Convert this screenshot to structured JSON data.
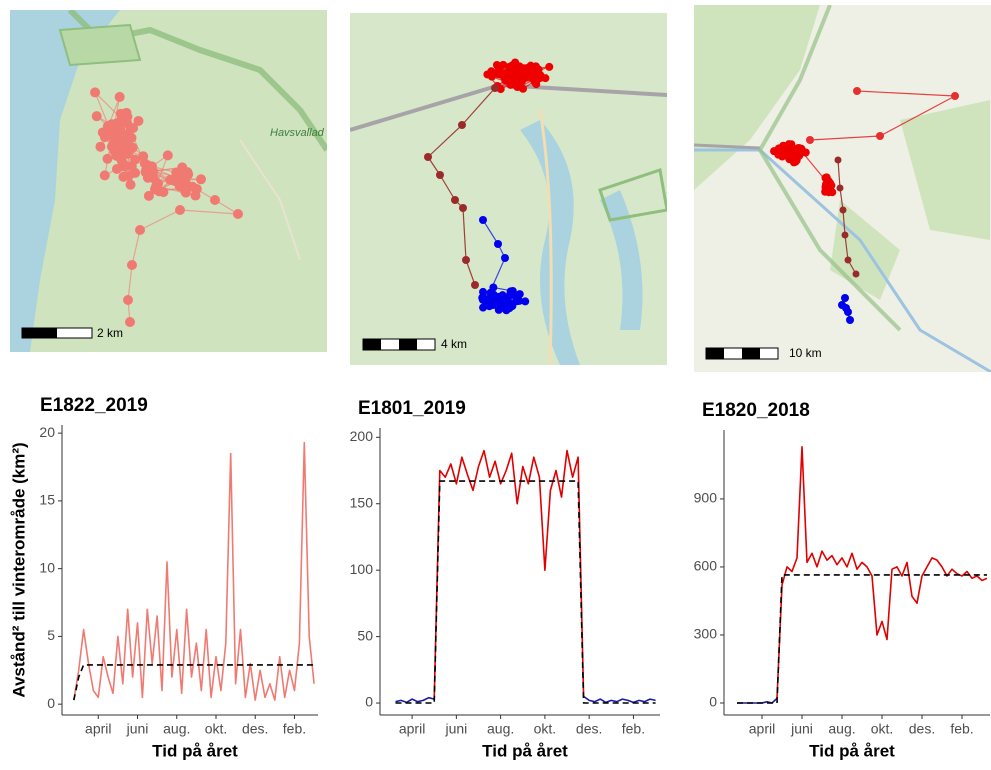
{
  "maps": [
    {
      "scale_label": "2 km"
    },
    {
      "scale_label": "4 km"
    },
    {
      "scale_label": "10 km"
    }
  ],
  "chart_data": [
    {
      "type": "line",
      "title": "E1822_2019",
      "ylabel": "Avstånd² till vinterområde (km²)",
      "xlabel": "Tid på året",
      "xlim": [
        1.15,
        14.2
      ],
      "ylim": [
        -0.8,
        20.6
      ],
      "yticks": [
        0,
        5,
        10,
        15,
        20
      ],
      "xticks": [
        {
          "value": 3,
          "label": "april"
        },
        {
          "value": 5,
          "label": "juni"
        },
        {
          "value": 7,
          "label": "aug."
        },
        {
          "value": 9,
          "label": "okt."
        },
        {
          "value": 11,
          "label": "des."
        },
        {
          "value": 13,
          "label": "feb."
        }
      ],
      "x": [
        1.75,
        2,
        2.25,
        2.5,
        2.75,
        3,
        3.25,
        3.5,
        3.75,
        4,
        4.25,
        4.5,
        4.75,
        5,
        5.25,
        5.5,
        5.75,
        6,
        6.25,
        6.5,
        6.75,
        7,
        7.25,
        7.5,
        7.75,
        8,
        8.25,
        8.5,
        8.75,
        9,
        9.25,
        9.5,
        9.75,
        10,
        10.25,
        10.5,
        10.75,
        11,
        11.25,
        11.5,
        11.75,
        12,
        12.25,
        12.5,
        12.75,
        13,
        13.25,
        13.5,
        13.75,
        14
      ],
      "series": [
        {
          "color": "#f07a72",
          "values": [
            0.3,
            2.5,
            5.5,
            3,
            1,
            0.5,
            3.5,
            2,
            0.8,
            5,
            1.5,
            7,
            2,
            6,
            0.5,
            7,
            3,
            6.5,
            1,
            10.5,
            2,
            5.5,
            0.8,
            7,
            2,
            4.5,
            1,
            5.5,
            0.5,
            3.5,
            1,
            4.5,
            18.5,
            1.5,
            5.5,
            0.5,
            3,
            0.3,
            2.5,
            0.5,
            1.5,
            0.3,
            3.5,
            0.5,
            2.5,
            1,
            4.5,
            19.3,
            5,
            1.5
          ]
        },
        {
          "color": "#000000",
          "dashed": true,
          "values": [
            0.3,
            2,
            2.9,
            2.9,
            2.9,
            2.9,
            2.9,
            2.9,
            2.9,
            2.9,
            2.9,
            2.9,
            2.9,
            2.9,
            2.9,
            2.9,
            2.9,
            2.9,
            2.9,
            2.9,
            2.9,
            2.9,
            2.9,
            2.9,
            2.9,
            2.9,
            2.9,
            2.9,
            2.9,
            2.9,
            2.9,
            2.9,
            2.9,
            2.9,
            2.9,
            2.9,
            2.9,
            2.9,
            2.9,
            2.9,
            2.9,
            2.9,
            2.9,
            2.9,
            2.9,
            2.9,
            2.9,
            2.9,
            2.9,
            2.9
          ]
        }
      ]
    },
    {
      "type": "line",
      "title": "E1801_2019",
      "xlabel": "Tid på året",
      "xlim": [
        1.55,
        14.2
      ],
      "ylim": [
        -9,
        207
      ],
      "yticks": [
        0,
        50,
        100,
        150,
        200
      ],
      "xticks": [
        {
          "value": 3,
          "label": "april"
        },
        {
          "value": 5,
          "label": "juni"
        },
        {
          "value": 7,
          "label": "aug."
        },
        {
          "value": 9,
          "label": "okt."
        },
        {
          "value": 11,
          "label": "des."
        },
        {
          "value": 13,
          "label": "feb."
        }
      ],
      "x": [
        2.25,
        2.5,
        2.75,
        3,
        3.25,
        3.5,
        3.75,
        4,
        4.25,
        4.5,
        4.75,
        5,
        5.25,
        5.5,
        5.75,
        6,
        6.25,
        6.5,
        6.75,
        7,
        7.25,
        7.5,
        7.75,
        8,
        8.25,
        8.5,
        8.75,
        9,
        9.25,
        9.5,
        9.75,
        10,
        10.25,
        10.5,
        10.75,
        11,
        11.25,
        11.5,
        11.75,
        12,
        12.25,
        12.5,
        12.75,
        13,
        13.25,
        13.5,
        13.75,
        14
      ],
      "series": [
        {
          "color": "#1a1aa6",
          "values": [
            1,
            2,
            0.5,
            3,
            1,
            2,
            4,
            3,
            null,
            null,
            null,
            null,
            null,
            null,
            null,
            null,
            null,
            null,
            null,
            null,
            null,
            null,
            null,
            null,
            null,
            null,
            null,
            null,
            null,
            null,
            null,
            null,
            null,
            null,
            5,
            2,
            1,
            3,
            0.5,
            2,
            1,
            3,
            2,
            0.5,
            2,
            1,
            3,
            2
          ]
        },
        {
          "color": "#e00000",
          "values": [
            null,
            null,
            null,
            null,
            null,
            null,
            null,
            3,
            175,
            170,
            180,
            165,
            185,
            172,
            160,
            178,
            190,
            170,
            182,
            165,
            175,
            188,
            150,
            178,
            165,
            185,
            170,
            100,
            160,
            175,
            155,
            190,
            170,
            185,
            5,
            null,
            null,
            null,
            null,
            null,
            null,
            null,
            null,
            null,
            null,
            null,
            null,
            null
          ]
        },
        {
          "color": "#000000",
          "dashed": true,
          "values": [
            0,
            0,
            0,
            0,
            0,
            0,
            0,
            0,
            167,
            167,
            167,
            167,
            167,
            167,
            167,
            167,
            167,
            167,
            167,
            167,
            167,
            167,
            167,
            167,
            167,
            167,
            167,
            167,
            167,
            167,
            167,
            167,
            167,
            167,
            0,
            0,
            0,
            0,
            0,
            0,
            0,
            0,
            0,
            0,
            0,
            0,
            0,
            0
          ]
        }
      ]
    },
    {
      "type": "line",
      "title": "E1820_2018",
      "xlabel": "Tid på året",
      "xlim": [
        1.1,
        14.4
      ],
      "ylim": [
        -53,
        1204
      ],
      "yticks": [
        0,
        300,
        600,
        900
      ],
      "xticks": [
        {
          "value": 3,
          "label": "april"
        },
        {
          "value": 5,
          "label": "juni"
        },
        {
          "value": 7,
          "label": "aug."
        },
        {
          "value": 9,
          "label": "okt."
        },
        {
          "value": 11,
          "label": "des."
        },
        {
          "value": 13,
          "label": "feb."
        }
      ],
      "x": [
        1.75,
        2,
        2.25,
        2.5,
        2.75,
        3,
        3.25,
        3.5,
        3.75,
        4,
        4.25,
        4.5,
        4.75,
        5,
        5.25,
        5.5,
        5.75,
        6,
        6.25,
        6.5,
        6.75,
        7,
        7.25,
        7.5,
        7.75,
        8,
        8.25,
        8.5,
        8.75,
        9,
        9.25,
        9.5,
        9.75,
        10,
        10.25,
        10.5,
        10.75,
        11,
        11.25,
        11.5,
        11.75,
        12,
        12.25,
        12.5,
        12.75,
        13,
        13.25,
        13.5,
        13.75,
        14,
        14.25
      ],
      "series": [
        {
          "color": "#1a1aa6",
          "values": [
            0,
            0,
            0,
            0,
            0,
            0,
            5,
            0,
            20,
            null,
            null,
            null,
            null,
            null,
            null,
            null,
            null,
            null,
            null,
            null,
            null,
            null,
            null,
            null,
            null,
            null,
            null,
            null,
            null,
            null,
            null,
            null,
            null,
            null,
            null,
            null,
            null,
            null,
            null,
            null,
            null,
            null,
            null,
            null,
            null,
            null,
            null,
            null,
            null,
            null,
            null
          ]
        },
        {
          "color": "#e00000",
          "values": [
            null,
            null,
            null,
            null,
            null,
            null,
            null,
            null,
            20,
            520,
            600,
            580,
            640,
            1130,
            620,
            660,
            600,
            670,
            630,
            650,
            610,
            640,
            600,
            660,
            590,
            620,
            600,
            560,
            300,
            360,
            280,
            590,
            600,
            560,
            620,
            470,
            440,
            560,
            600,
            640,
            630,
            600,
            560,
            590,
            570,
            560,
            580,
            550,
            560,
            540,
            550
          ]
        },
        {
          "color": "#000000",
          "dashed": true,
          "values": [
            0,
            0,
            0,
            0,
            0,
            0,
            0,
            0,
            0,
            565,
            565,
            565,
            565,
            565,
            565,
            565,
            565,
            565,
            565,
            565,
            565,
            565,
            565,
            565,
            565,
            565,
            565,
            565,
            565,
            565,
            565,
            565,
            565,
            565,
            565,
            565,
            565,
            565,
            565,
            565,
            565,
            565,
            565,
            565,
            565,
            565,
            565,
            565,
            565,
            565,
            565
          ]
        }
      ]
    }
  ]
}
